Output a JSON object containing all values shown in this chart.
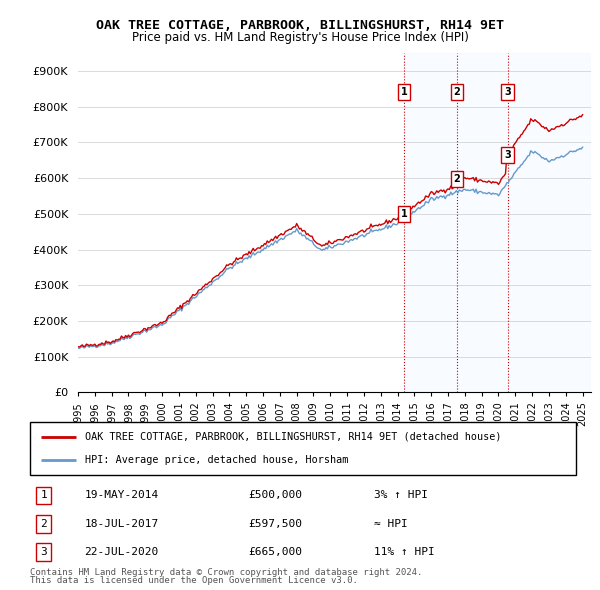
{
  "title": "OAK TREE COTTAGE, PARBROOK, BILLINGSHURST, RH14 9ET",
  "subtitle": "Price paid vs. HM Land Registry's House Price Index (HPI)",
  "legend_line1": "OAK TREE COTTAGE, PARBROOK, BILLINGSHURST, RH14 9ET (detached house)",
  "legend_line2": "HPI: Average price, detached house, Horsham",
  "footer1": "Contains HM Land Registry data © Crown copyright and database right 2024.",
  "footer2": "This data is licensed under the Open Government Licence v3.0.",
  "transactions": [
    {
      "num": 1,
      "date": "19-MAY-2014",
      "price": "£500,000",
      "hpi": "3% ↑ HPI",
      "year": 2014.38
    },
    {
      "num": 2,
      "date": "18-JUL-2017",
      "price": "£597,500",
      "hpi": "≈ HPI",
      "year": 2017.54
    },
    {
      "num": 3,
      "date": "22-JUL-2020",
      "price": "£665,000",
      "hpi": "11% ↑ HPI",
      "year": 2020.54
    }
  ],
  "transaction_values": [
    500000,
    597500,
    665000
  ],
  "ylim": [
    0,
    950000
  ],
  "yticks": [
    0,
    100000,
    200000,
    300000,
    400000,
    500000,
    600000,
    700000,
    800000,
    900000
  ],
  "ytick_labels": [
    "£0",
    "£100K",
    "£200K",
    "£300K",
    "£400K",
    "£500K",
    "£600K",
    "£700K",
    "£800K",
    "£900K"
  ],
  "xmin": 1995,
  "xmax": 2025.5,
  "line_color_red": "#cc0000",
  "line_color_blue": "#6699cc",
  "vline_color": "#cc0000",
  "bg_color": "#ffffff",
  "grid_color": "#cccccc",
  "highlight_bg": "#ddeeff",
  "marker_box_color": "#cc0000"
}
